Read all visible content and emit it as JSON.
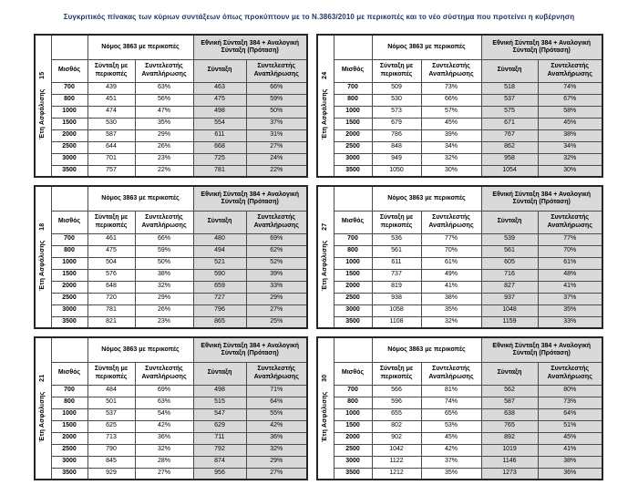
{
  "title": "Συγκριτικός  πίνακας των κύριων συντάξεων όπως προκύπτουν με το Ν.3863/2010 με περικοπές και το νέο σύστημα που προτείνει η κυβέρνηση",
  "colors": {
    "shaded_cell": "#d9d9d9",
    "title_text": "#1f3864",
    "border_outer": "#262626",
    "border_inner": "#4a4a4a"
  },
  "header": {
    "salary": "Μισθός",
    "law_group": "Νόμος 3863 με περικοπές",
    "proposal_group": "Εθνική Σύνταξη 384 + Αναλογική Σύνταξη (Πρόταση)",
    "law_pension": "Σύνταξη με περικοπές",
    "law_rate": "Συντελεστής Αναπλήρωσης",
    "proposal_pension": "Σύνταξη",
    "proposal_rate": "Συντελεστής Αναπλήρωσης"
  },
  "years_label": "Έτη Ασφάλισης",
  "tables": [
    {
      "years": "15",
      "rows": [
        [
          "700",
          "439",
          "63%",
          "463",
          "66%"
        ],
        [
          "800",
          "451",
          "56%",
          "475",
          "59%"
        ],
        [
          "1000",
          "474",
          "47%",
          "498",
          "50%"
        ],
        [
          "1500",
          "530",
          "35%",
          "554",
          "37%"
        ],
        [
          "2000",
          "587",
          "29%",
          "611",
          "31%"
        ],
        [
          "2500",
          "644",
          "26%",
          "668",
          "27%"
        ],
        [
          "3000",
          "701",
          "23%",
          "725",
          "24%"
        ],
        [
          "3500",
          "757",
          "22%",
          "781",
          "22%"
        ]
      ]
    },
    {
      "years": "18",
      "rows": [
        [
          "700",
          "461",
          "66%",
          "480",
          "69%"
        ],
        [
          "800",
          "475",
          "59%",
          "494",
          "62%"
        ],
        [
          "1000",
          "504",
          "50%",
          "521",
          "52%"
        ],
        [
          "1500",
          "576",
          "38%",
          "590",
          "39%"
        ],
        [
          "2000",
          "648",
          "32%",
          "659",
          "33%"
        ],
        [
          "2500",
          "720",
          "29%",
          "727",
          "29%"
        ],
        [
          "3000",
          "781",
          "26%",
          "796",
          "27%"
        ],
        [
          "3500",
          "821",
          "23%",
          "865",
          "25%"
        ]
      ]
    },
    {
      "years": "21",
      "rows": [
        [
          "700",
          "484",
          "69%",
          "498",
          "71%"
        ],
        [
          "800",
          "501",
          "63%",
          "515",
          "64%"
        ],
        [
          "1000",
          "537",
          "54%",
          "547",
          "55%"
        ],
        [
          "1500",
          "625",
          "42%",
          "629",
          "42%"
        ],
        [
          "2000",
          "713",
          "36%",
          "711",
          "36%"
        ],
        [
          "2500",
          "790",
          "32%",
          "792",
          "32%"
        ],
        [
          "3000",
          "845",
          "28%",
          "874",
          "29%"
        ],
        [
          "3500",
          "929",
          "27%",
          "956",
          "27%"
        ]
      ]
    },
    {
      "years": "24",
      "rows": [
        [
          "700",
          "509",
          "73%",
          "518",
          "74%"
        ],
        [
          "800",
          "530",
          "66%",
          "537",
          "67%"
        ],
        [
          "1000",
          "573",
          "57%",
          "575",
          "58%"
        ],
        [
          "1500",
          "679",
          "45%",
          "671",
          "45%"
        ],
        [
          "2000",
          "786",
          "39%",
          "767",
          "38%"
        ],
        [
          "2500",
          "848",
          "34%",
          "862",
          "34%"
        ],
        [
          "3000",
          "949",
          "32%",
          "958",
          "32%"
        ],
        [
          "3500",
          "1050",
          "30%",
          "1054",
          "30%"
        ]
      ]
    },
    {
      "years": "27",
      "rows": [
        [
          "700",
          "536",
          "77%",
          "539",
          "77%"
        ],
        [
          "800",
          "561",
          "70%",
          "561",
          "70%"
        ],
        [
          "1000",
          "611",
          "61%",
          "605",
          "61%"
        ],
        [
          "1500",
          "737",
          "49%",
          "716",
          "48%"
        ],
        [
          "2000",
          "819",
          "41%",
          "827",
          "41%"
        ],
        [
          "2500",
          "938",
          "38%",
          "937",
          "37%"
        ],
        [
          "3000",
          "1058",
          "35%",
          "1048",
          "35%"
        ],
        [
          "3500",
          "1108",
          "32%",
          "1159",
          "33%"
        ]
      ]
    },
    {
      "years": "30",
      "rows": [
        [
          "700",
          "566",
          "81%",
          "562",
          "80%"
        ],
        [
          "800",
          "596",
          "74%",
          "587",
          "73%"
        ],
        [
          "1000",
          "655",
          "65%",
          "638",
          "64%"
        ],
        [
          "1500",
          "802",
          "53%",
          "765",
          "51%"
        ],
        [
          "2000",
          "902",
          "45%",
          "892",
          "45%"
        ],
        [
          "2500",
          "1042",
          "42%",
          "1019",
          "41%"
        ],
        [
          "3000",
          "1122",
          "37%",
          "1146",
          "38%"
        ],
        [
          "3500",
          "1212",
          "35%",
          "1273",
          "36%"
        ]
      ]
    }
  ]
}
